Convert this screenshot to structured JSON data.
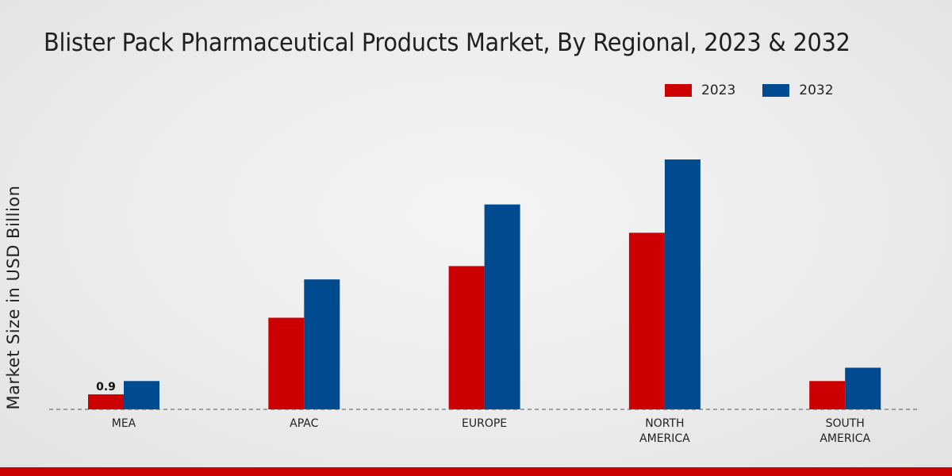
{
  "colors": {
    "series_2023": "#cc0000",
    "series_2032": "#004a8f",
    "footer": "#cc0000"
  },
  "chart_data": {
    "type": "bar",
    "title": "Blister Pack Pharmaceutical Products Market, By Regional, 2023 & 2032",
    "ylabel": "Market Size in USD Billion",
    "xlabel": "",
    "categories": [
      "MEA",
      "APAC",
      "EUROPE",
      "NORTH AMERICA",
      "SOUTH AMERICA"
    ],
    "category_lines": [
      [
        "MEA"
      ],
      [
        "APAC"
      ],
      [
        "EUROPE"
      ],
      [
        "NORTH",
        "AMERICA"
      ],
      [
        "SOUTH",
        "AMERICA"
      ]
    ],
    "series": [
      {
        "name": "2023",
        "values": [
          0.9,
          5.5,
          8.6,
          10.6,
          1.7
        ]
      },
      {
        "name": "2032",
        "values": [
          1.7,
          7.8,
          12.3,
          15.0,
          2.5
        ]
      }
    ],
    "data_labels": [
      {
        "series": 0,
        "index": 0,
        "text": "0.9"
      }
    ],
    "ylim": [
      0,
      20
    ],
    "grid": false,
    "legend_position": "top-right"
  }
}
